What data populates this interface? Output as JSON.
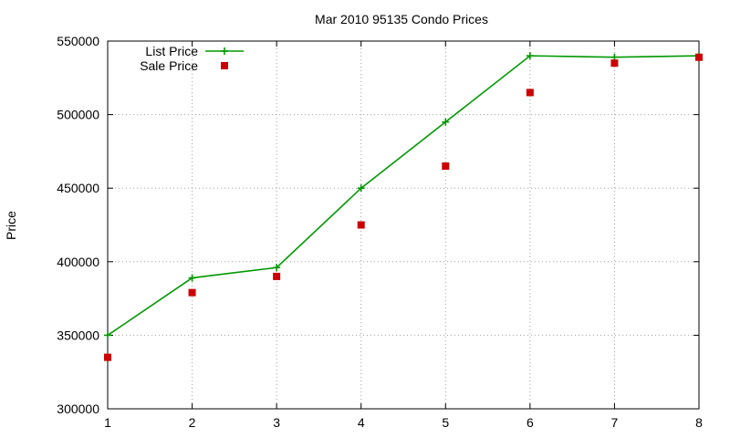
{
  "chart_data": {
    "type": "line",
    "title": "Mar 2010 95135 Condo Prices",
    "xlabel": "",
    "ylabel": "Price",
    "xlim": [
      1,
      8
    ],
    "ylim": [
      300000,
      550000
    ],
    "x_ticks": [
      1,
      2,
      3,
      4,
      5,
      6,
      7,
      8
    ],
    "y_ticks": [
      300000,
      350000,
      400000,
      450000,
      500000,
      550000
    ],
    "grid": true,
    "legend_position": "top-left",
    "series": [
      {
        "name": "List Price",
        "kind": "line-with-plus-markers",
        "color": "#009900",
        "x": [
          1,
          2,
          3,
          4,
          5,
          6,
          7,
          8
        ],
        "values": [
          350000,
          389000,
          396000,
          450000,
          495000,
          540000,
          539000,
          540000
        ]
      },
      {
        "name": "Sale Price",
        "kind": "square-points",
        "color": "#cc0000",
        "x": [
          1,
          2,
          3,
          4,
          5,
          6,
          7,
          8
        ],
        "values": [
          335000,
          379000,
          390000,
          425000,
          465000,
          515000,
          535000,
          539000
        ]
      }
    ]
  }
}
